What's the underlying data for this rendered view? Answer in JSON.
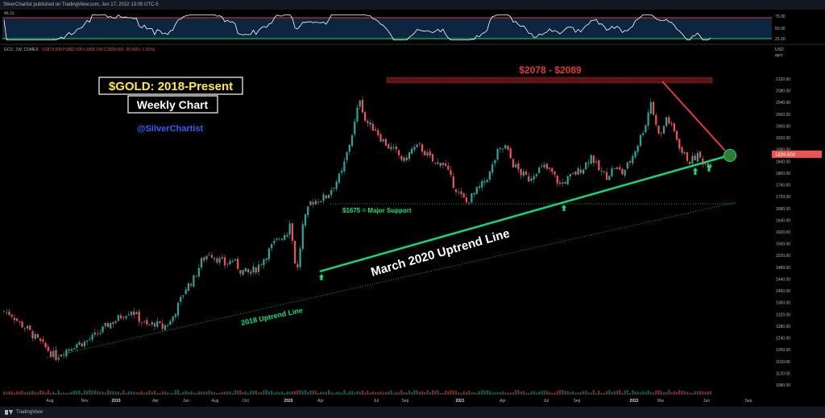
{
  "header": {
    "publish_text": "SilverChartist published on TradingView.com, Jun 17, 2022 13:05 UTC-5"
  },
  "rsi": {
    "value_label": "46.31",
    "levels": [
      75,
      50,
      25
    ],
    "level_labels": [
      "75.00",
      "50.00",
      "25.00"
    ],
    "overbought_color": "#e53935",
    "oversold_color": "#00e676",
    "line_color": "#ffffff"
  },
  "ohlc_line": {
    "symbol": "GC1!, 1W, COMEX",
    "values": "O1879.000 H1882.500 L1806.100 C1839.600 -35.600 (-1.91%)"
  },
  "price_label": "1839.600",
  "colors": {
    "up": "#26a69a",
    "down": "#ef5350",
    "uptrend": "#00e676",
    "resistance": "#e53935",
    "title": "#ffeb3b",
    "handle": "#2962ff"
  },
  "annotations": {
    "title": "$GOLD: 2018-Present",
    "subtitle": "Weekly Chart",
    "handle": "@SilverChartist",
    "resistance_zone": "$2078 - $2089",
    "major_support": "$1675 = Major Support",
    "march_uptrend": "March 2020 Uptrend Line",
    "uptrend_2018": "2018 Uptrend Line"
  },
  "chart_data": {
    "type": "candlestick",
    "title": "$GOLD: 2018-Present",
    "symbol": "GC1!, 1W, COMEX",
    "ylim": [
      1060,
      2140
    ],
    "y_ticks": [
      2120,
      2080,
      2040,
      2000,
      1960,
      1920,
      1880,
      1840,
      1800,
      1760,
      1720,
      1680,
      1640,
      1600,
      1560,
      1520,
      1480,
      1440,
      1400,
      1360,
      1320,
      1280,
      1240,
      1200,
      1160,
      1120,
      1080
    ],
    "x_tick_labels": [
      "Aug",
      "Nov",
      "2019",
      "Apr",
      "Jun",
      "Aug",
      "Oct",
      "2020",
      "Apr",
      "Jul",
      "Sep",
      "2021",
      "Apr",
      "Jul",
      "Sep",
      "2022",
      "Mar",
      "Jun",
      "Sep"
    ],
    "last_price": 1839.6,
    "resistance_zone": [
      2078,
      2089
    ],
    "major_support": 1675,
    "price_path": [
      [
        0,
        1330
      ],
      [
        3,
        1320
      ],
      [
        6,
        1290
      ],
      [
        9,
        1270
      ],
      [
        12,
        1240
      ],
      [
        15,
        1215
      ],
      [
        18,
        1190
      ],
      [
        20,
        1175
      ],
      [
        22,
        1190
      ],
      [
        25,
        1205
      ],
      [
        28,
        1220
      ],
      [
        31,
        1225
      ],
      [
        34,
        1240
      ],
      [
        37,
        1260
      ],
      [
        40,
        1285
      ],
      [
        43,
        1300
      ],
      [
        46,
        1320
      ],
      [
        49,
        1335
      ],
      [
        52,
        1305
      ],
      [
        55,
        1280
      ],
      [
        58,
        1290
      ],
      [
        61,
        1275
      ],
      [
        64,
        1295
      ],
      [
        67,
        1350
      ],
      [
        70,
        1410
      ],
      [
        73,
        1440
      ],
      [
        76,
        1500
      ],
      [
        79,
        1530
      ],
      [
        82,
        1510
      ],
      [
        85,
        1490
      ],
      [
        88,
        1505
      ],
      [
        91,
        1470
      ],
      [
        94,
        1460
      ],
      [
        97,
        1475
      ],
      [
        100,
        1510
      ],
      [
        103,
        1550
      ],
      [
        106,
        1580
      ],
      [
        109,
        1600
      ],
      [
        110,
        1640
      ],
      [
        112,
        1500
      ],
      [
        113,
        1475
      ],
      [
        115,
        1620
      ],
      [
        118,
        1700
      ],
      [
        121,
        1710
      ],
      [
        124,
        1720
      ],
      [
        127,
        1760
      ],
      [
        130,
        1800
      ],
      [
        133,
        1900
      ],
      [
        135,
        1970
      ],
      [
        137,
        2055
      ],
      [
        139,
        1980
      ],
      [
        141,
        1960
      ],
      [
        143,
        1950
      ],
      [
        145,
        1920
      ],
      [
        148,
        1890
      ],
      [
        151,
        1870
      ],
      [
        154,
        1840
      ],
      [
        157,
        1880
      ],
      [
        160,
        1890
      ],
      [
        163,
        1860
      ],
      [
        166,
        1830
      ],
      [
        169,
        1840
      ],
      [
        172,
        1780
      ],
      [
        175,
        1730
      ],
      [
        178,
        1700
      ],
      [
        181,
        1730
      ],
      [
        184,
        1760
      ],
      [
        187,
        1800
      ],
      [
        190,
        1870
      ],
      [
        193,
        1890
      ],
      [
        196,
        1830
      ],
      [
        199,
        1800
      ],
      [
        202,
        1780
      ],
      [
        205,
        1810
      ],
      [
        208,
        1820
      ],
      [
        211,
        1800
      ],
      [
        214,
        1760
      ],
      [
        217,
        1780
      ],
      [
        220,
        1800
      ],
      [
        223,
        1820
      ],
      [
        226,
        1860
      ],
      [
        229,
        1810
      ],
      [
        232,
        1790
      ],
      [
        235,
        1820
      ],
      [
        238,
        1800
      ],
      [
        241,
        1840
      ],
      [
        244,
        1900
      ],
      [
        247,
        1970
      ],
      [
        249,
        2045
      ],
      [
        251,
        1960
      ],
      [
        253,
        1930
      ],
      [
        255,
        1990
      ],
      [
        258,
        1940
      ],
      [
        261,
        1870
      ],
      [
        264,
        1840
      ],
      [
        267,
        1860
      ],
      [
        270,
        1830
      ],
      [
        272,
        1839.6
      ]
    ],
    "series": [
      {
        "name": "Resistance zone",
        "values": [
          2078,
          2089
        ]
      },
      {
        "name": "Major support",
        "values": [
          1675
        ]
      }
    ]
  }
}
